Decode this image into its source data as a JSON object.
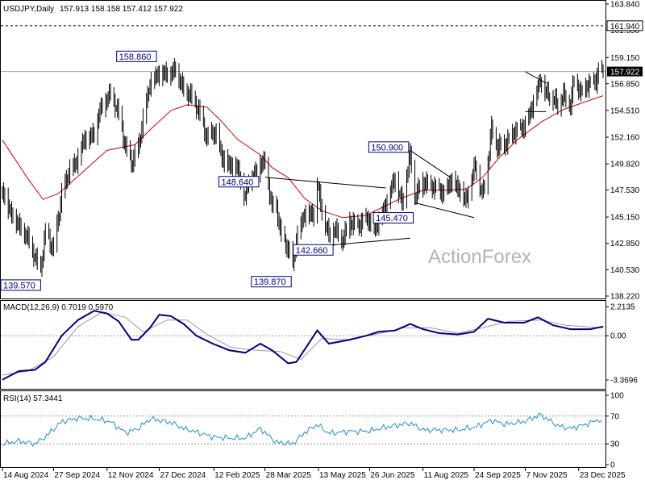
{
  "header": {
    "symbol": "USDJPY,Daily",
    "ohlc": "157.913 158.158 157.412 157.922"
  },
  "watermark": "ActionForex",
  "colors": {
    "candles": "#000000",
    "ma": "#d40000",
    "macd_line": "#000080",
    "macd_signal": "#9a9a9a",
    "rsi": "#1e90c8",
    "dashed_level": "#000000",
    "price_line": "#a0a0a0",
    "annotation_text": "#000080"
  },
  "chart_data": [
    {
      "type": "candlestick",
      "title": "USDJPY,Daily",
      "ylim": [
        138.22,
        163.84
      ],
      "y_ticks": [
        "163.840",
        "161.550",
        "159.150",
        "156.850",
        "154.510",
        "152.160",
        "149.820",
        "147.530",
        "145.150",
        "142.850",
        "140.530",
        "138.220"
      ],
      "x_ticks": [
        "14 Aug 2024",
        "27 Sep 2024",
        "12 Nov 2024",
        "27 Dec 2024",
        "12 Feb 2025",
        "28 Mar 2025",
        "13 May 2025",
        "26 Jun 2025",
        "11 Aug 2025",
        "24 Sep 2025",
        "7 Nov 2025",
        "23 Dec 2025"
      ],
      "x_range": [
        "2024-08-14",
        "2026-01-13"
      ],
      "current_price": "157.922",
      "current_price_value": 157.922,
      "dashed_level": "161.940",
      "dashed_level_value": 161.94,
      "close_path": [
        [
          "2024-08-14",
          147.5
        ],
        [
          "2024-08-20",
          145.8
        ],
        [
          "2024-08-28",
          144.5
        ],
        [
          "2024-09-05",
          143.3
        ],
        [
          "2024-09-11",
          141.6
        ],
        [
          "2024-09-16",
          140.5
        ],
        [
          "2024-09-20",
          143.8
        ],
        [
          "2024-09-27",
          142.2
        ],
        [
          "2024-10-04",
          147.0
        ],
        [
          "2024-10-10",
          149.0
        ],
        [
          "2024-10-17",
          150.0
        ],
        [
          "2024-10-23",
          151.9
        ],
        [
          "2024-11-01",
          152.5
        ],
        [
          "2024-11-06",
          154.6
        ],
        [
          "2024-11-15",
          156.0
        ],
        [
          "2024-11-22",
          154.2
        ],
        [
          "2024-11-28",
          151.2
        ],
        [
          "2024-12-03",
          149.8
        ],
        [
          "2024-12-09",
          151.1
        ],
        [
          "2024-12-13",
          153.6
        ],
        [
          "2024-12-19",
          156.8
        ],
        [
          "2024-12-26",
          157.7
        ],
        [
          "2025-01-06",
          157.8
        ],
        [
          "2025-01-10",
          158.2
        ],
        [
          "2025-01-17",
          156.3
        ],
        [
          "2025-01-23",
          155.8
        ],
        [
          "2025-01-30",
          154.4
        ],
        [
          "2025-02-06",
          152.0
        ],
        [
          "2025-02-11",
          152.5
        ],
        [
          "2025-02-14",
          152.3
        ],
        [
          "2025-02-20",
          150.1
        ],
        [
          "2025-02-27",
          149.6
        ],
        [
          "2025-03-04",
          149.5
        ],
        [
          "2025-03-11",
          146.9
        ],
        [
          "2025-03-14",
          148.5
        ],
        [
          "2025-03-20",
          149.0
        ],
        [
          "2025-03-24",
          149.9
        ],
        [
          "2025-03-28",
          149.9
        ],
        [
          "2025-04-03",
          146.0
        ],
        [
          "2025-04-07",
          145.9
        ],
        [
          "2025-04-11",
          143.4
        ],
        [
          "2025-04-17",
          142.3
        ],
        [
          "2025-04-21",
          140.9
        ],
        [
          "2025-04-24",
          143.1
        ],
        [
          "2025-05-01",
          145.4
        ],
        [
          "2025-05-09",
          145.4
        ],
        [
          "2025-05-12",
          148.2
        ],
        [
          "2025-05-16",
          145.7
        ],
        [
          "2025-05-22",
          143.6
        ],
        [
          "2025-05-27",
          144.2
        ],
        [
          "2025-06-02",
          143.0
        ],
        [
          "2025-06-09",
          144.6
        ],
        [
          "2025-06-16",
          144.3
        ],
        [
          "2025-06-24",
          145.0
        ],
        [
          "2025-06-30",
          144.0
        ],
        [
          "2025-07-04",
          144.8
        ],
        [
          "2025-07-10",
          146.2
        ],
        [
          "2025-07-15",
          147.8
        ],
        [
          "2025-07-18",
          148.6
        ],
        [
          "2025-07-24",
          146.4
        ],
        [
          "2025-07-31",
          150.7
        ],
        [
          "2025-08-04",
          147.0
        ],
        [
          "2025-08-11",
          148.2
        ],
        [
          "2025-08-18",
          147.8
        ],
        [
          "2025-08-25",
          147.5
        ],
        [
          "2025-08-29",
          147.1
        ],
        [
          "2025-09-04",
          148.3
        ],
        [
          "2025-09-11",
          147.6
        ],
        [
          "2025-09-17",
          146.6
        ],
        [
          "2025-09-25",
          149.8
        ],
        [
          "2025-10-01",
          147.1
        ],
        [
          "2025-10-06",
          150.0
        ],
        [
          "2025-10-09",
          153.0
        ],
        [
          "2025-10-14",
          151.3
        ],
        [
          "2025-10-21",
          151.5
        ],
        [
          "2025-10-29",
          152.6
        ],
        [
          "2025-11-06",
          153.0
        ],
        [
          "2025-11-11",
          154.2
        ],
        [
          "2025-11-20",
          157.2
        ],
        [
          "2025-11-25",
          156.1
        ],
        [
          "2025-12-01",
          155.6
        ],
        [
          "2025-12-05",
          155.1
        ],
        [
          "2025-12-10",
          155.9
        ],
        [
          "2025-12-16",
          155.0
        ],
        [
          "2025-12-19",
          157.3
        ],
        [
          "2025-12-25",
          156.0
        ],
        [
          "2026-01-02",
          156.9
        ],
        [
          "2026-01-07",
          157.0
        ],
        [
          "2026-01-09",
          158.0
        ],
        [
          "2026-01-13",
          157.9
        ]
      ],
      "moving_average": [
        [
          "2024-08-14",
          151.9
        ],
        [
          "2024-09-05",
          148.5
        ],
        [
          "2024-09-18",
          146.7
        ],
        [
          "2024-10-01",
          147.2
        ],
        [
          "2024-10-21",
          149.0
        ],
        [
          "2024-11-12",
          151.0
        ],
        [
          "2024-12-06",
          151.5
        ],
        [
          "2024-12-19",
          152.8
        ],
        [
          "2025-01-06",
          154.5
        ],
        [
          "2025-01-20",
          155.0
        ],
        [
          "2025-02-06",
          154.8
        ],
        [
          "2025-02-19",
          153.5
        ],
        [
          "2025-03-04",
          152.0
        ],
        [
          "2025-03-24",
          150.6
        ],
        [
          "2025-04-03",
          149.5
        ],
        [
          "2025-04-17",
          148.6
        ],
        [
          "2025-05-01",
          146.8
        ],
        [
          "2025-05-16",
          145.7
        ],
        [
          "2025-06-03",
          145.1
        ],
        [
          "2025-06-23",
          145.3
        ],
        [
          "2025-07-07",
          146.0
        ],
        [
          "2025-07-23",
          146.8
        ],
        [
          "2025-08-11",
          147.5
        ],
        [
          "2025-08-29",
          147.5
        ],
        [
          "2025-09-17",
          147.6
        ],
        [
          "2025-10-01",
          148.6
        ],
        [
          "2025-10-16",
          150.4
        ],
        [
          "2025-11-01",
          152.0
        ],
        [
          "2025-11-21",
          153.5
        ],
        [
          "2025-12-10",
          154.6
        ],
        [
          "2026-01-13",
          155.8
        ]
      ],
      "annotations": [
        {
          "label": "158.860",
          "date": "2024-12-26",
          "value": 158.86
        },
        {
          "label": "139.570",
          "date": "2024-09-16",
          "value": 139.57
        },
        {
          "label": "148.640",
          "date": "2025-03-24",
          "value": 148.64
        },
        {
          "label": "139.870",
          "date": "2025-04-21",
          "value": 139.87
        },
        {
          "label": "142.660",
          "date": "2025-05-27",
          "value": 142.66
        },
        {
          "label": "150.900",
          "date": "2025-07-31",
          "value": 150.9
        },
        {
          "label": "145.470",
          "date": "2025-08-04",
          "value": 145.47
        }
      ],
      "trendlines": [
        [
          [
            "2025-03-28",
            148.64
          ],
          [
            "2025-07-10",
            147.7
          ]
        ],
        [
          [
            "2025-04-21",
            142.4
          ],
          [
            "2025-07-31",
            143.3
          ]
        ],
        [
          [
            "2025-07-31",
            151.0
          ],
          [
            "2025-09-04",
            148.6
          ]
        ],
        [
          [
            "2025-08-04",
            146.4
          ],
          [
            "2025-09-24",
            145.1
          ]
        ],
        [
          [
            "2025-11-07",
            157.9
          ],
          [
            "2025-11-25",
            156.9
          ]
        ],
        [
          [
            "2025-11-07",
            154.4
          ],
          [
            "2025-11-25",
            154.4
          ]
        ]
      ]
    },
    {
      "type": "line",
      "title": "MACD(12,26,9) 0.7019 0.5970",
      "ylim": [
        -3.8,
        2.35
      ],
      "y_ticks": [
        "2.2135",
        "0.00",
        "-3.3696"
      ],
      "series": [
        {
          "name": "MACD",
          "values": [
            [
              "2024-08-14",
              -3.35
            ],
            [
              "2024-08-28",
              -2.7
            ],
            [
              "2024-09-11",
              -2.6
            ],
            [
              "2024-09-20",
              -2.0
            ],
            [
              "2024-10-04",
              0.0
            ],
            [
              "2024-10-18",
              1.2
            ],
            [
              "2024-11-01",
              1.9
            ],
            [
              "2024-11-12",
              1.7
            ],
            [
              "2024-11-22",
              1.1
            ],
            [
              "2024-12-03",
              -0.3
            ],
            [
              "2024-12-09",
              -0.3
            ],
            [
              "2024-12-19",
              0.6
            ],
            [
              "2024-12-27",
              1.6
            ],
            [
              "2025-01-06",
              1.5
            ],
            [
              "2025-01-17",
              0.9
            ],
            [
              "2025-01-28",
              0.0
            ],
            [
              "2025-02-11",
              -0.6
            ],
            [
              "2025-02-25",
              -1.1
            ],
            [
              "2025-03-11",
              -1.3
            ],
            [
              "2025-03-24",
              -0.6
            ],
            [
              "2025-04-03",
              -1.1
            ],
            [
              "2025-04-17",
              -2.1
            ],
            [
              "2025-04-24",
              -2.0
            ],
            [
              "2025-05-12",
              0.4
            ],
            [
              "2025-05-22",
              -0.6
            ],
            [
              "2025-06-09",
              -0.3
            ],
            [
              "2025-06-23",
              0.0
            ],
            [
              "2025-07-04",
              0.3
            ],
            [
              "2025-07-18",
              0.4
            ],
            [
              "2025-07-31",
              0.9
            ],
            [
              "2025-08-11",
              0.5
            ],
            [
              "2025-08-25",
              0.2
            ],
            [
              "2025-09-10",
              0.1
            ],
            [
              "2025-09-24",
              0.3
            ],
            [
              "2025-10-06",
              1.3
            ],
            [
              "2025-10-20",
              1.0
            ],
            [
              "2025-11-06",
              1.0
            ],
            [
              "2025-11-18",
              1.4
            ],
            [
              "2025-12-01",
              0.8
            ],
            [
              "2025-12-16",
              0.5
            ],
            [
              "2026-01-02",
              0.5
            ],
            [
              "2026-01-13",
              0.7
            ]
          ]
        },
        {
          "name": "Signal",
          "values": [
            [
              "2024-08-14",
              -3.0
            ],
            [
              "2024-09-05",
              -2.7
            ],
            [
              "2024-09-27",
              -1.6
            ],
            [
              "2024-10-18",
              0.7
            ],
            [
              "2024-11-08",
              1.8
            ],
            [
              "2024-11-28",
              1.4
            ],
            [
              "2024-12-13",
              0.3
            ],
            [
              "2025-01-03",
              1.2
            ],
            [
              "2025-01-20",
              1.2
            ],
            [
              "2025-02-06",
              0.1
            ],
            [
              "2025-02-27",
              -0.9
            ],
            [
              "2025-03-20",
              -1.1
            ],
            [
              "2025-04-10",
              -1.2
            ],
            [
              "2025-04-28",
              -1.8
            ],
            [
              "2025-05-16",
              -0.2
            ],
            [
              "2025-06-06",
              -0.3
            ],
            [
              "2025-07-01",
              0.1
            ],
            [
              "2025-07-25",
              0.6
            ],
            [
              "2025-08-18",
              0.6
            ],
            [
              "2025-09-10",
              0.2
            ],
            [
              "2025-10-01",
              0.6
            ],
            [
              "2025-10-24",
              1.1
            ],
            [
              "2025-11-20",
              1.2
            ],
            [
              "2025-12-12",
              0.8
            ],
            [
              "2026-01-13",
              0.6
            ]
          ]
        }
      ]
    },
    {
      "type": "line",
      "title": "RSI(14) 57.3441",
      "ylim": [
        0,
        100
      ],
      "y_ticks": [
        "100",
        "70",
        "30",
        "0"
      ],
      "series": [
        {
          "name": "RSI(14)",
          "values": [
            [
              "2024-08-14",
              30
            ],
            [
              "2024-08-28",
              34
            ],
            [
              "2024-09-11",
              30
            ],
            [
              "2024-09-20",
              40
            ],
            [
              "2024-10-04",
              62
            ],
            [
              "2024-10-18",
              67
            ],
            [
              "2024-11-01",
              66
            ],
            [
              "2024-11-15",
              62
            ],
            [
              "2024-11-28",
              46
            ],
            [
              "2024-12-09",
              52
            ],
            [
              "2024-12-19",
              66
            ],
            [
              "2025-01-06",
              61
            ],
            [
              "2025-01-17",
              52
            ],
            [
              "2025-01-30",
              46
            ],
            [
              "2025-02-11",
              40
            ],
            [
              "2025-02-27",
              38
            ],
            [
              "2025-03-11",
              38
            ],
            [
              "2025-03-24",
              52
            ],
            [
              "2025-04-07",
              32
            ],
            [
              "2025-04-21",
              30
            ],
            [
              "2025-05-01",
              46
            ],
            [
              "2025-05-12",
              58
            ],
            [
              "2025-05-22",
              45
            ],
            [
              "2025-06-09",
              48
            ],
            [
              "2025-06-24",
              48
            ],
            [
              "2025-07-10",
              54
            ],
            [
              "2025-07-31",
              60
            ],
            [
              "2025-08-11",
              50
            ],
            [
              "2025-08-25",
              50
            ],
            [
              "2025-09-11",
              50
            ],
            [
              "2025-09-25",
              54
            ],
            [
              "2025-10-09",
              64
            ],
            [
              "2025-10-21",
              58
            ],
            [
              "2025-11-06",
              62
            ],
            [
              "2025-11-20",
              72
            ],
            [
              "2025-12-05",
              56
            ],
            [
              "2025-12-16",
              52
            ],
            [
              "2026-01-02",
              60
            ],
            [
              "2026-01-09",
              66
            ],
            [
              "2026-01-13",
              57
            ]
          ]
        }
      ]
    }
  ]
}
